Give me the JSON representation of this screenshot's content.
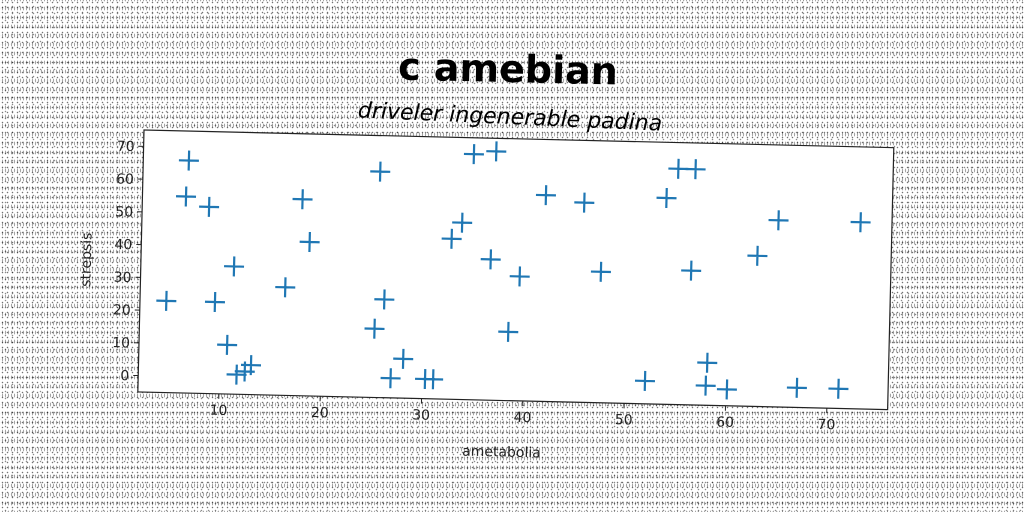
{
  "chart_data": {
    "type": "scatter",
    "title": "c amebian",
    "subtitle": "driveler ingenerable padina",
    "xlabel": "ametabolia",
    "ylabel": "strepsis",
    "xlim": [
      2,
      76
    ],
    "ylim": [
      -5,
      75
    ],
    "xticks": [
      10,
      20,
      30,
      40,
      50,
      60,
      70
    ],
    "yticks": [
      0,
      10,
      20,
      30,
      40,
      50,
      60,
      70
    ],
    "grid": false,
    "marker": "plus",
    "color": "#1f77b4",
    "points": [
      {
        "x": 6.5,
        "y": 66
      },
      {
        "x": 6.3,
        "y": 55
      },
      {
        "x": 8.6,
        "y": 52
      },
      {
        "x": 4.6,
        "y": 23
      },
      {
        "x": 9.4,
        "y": 23
      },
      {
        "x": 11.2,
        "y": 34
      },
      {
        "x": 10.7,
        "y": 10
      },
      {
        "x": 11.7,
        "y": 1
      },
      {
        "x": 12.5,
        "y": 2
      },
      {
        "x": 13.1,
        "y": 4
      },
      {
        "x": 16.3,
        "y": 28
      },
      {
        "x": 17.8,
        "y": 55
      },
      {
        "x": 18.6,
        "y": 42
      },
      {
        "x": 25.4,
        "y": 64
      },
      {
        "x": 25.2,
        "y": 16
      },
      {
        "x": 26.1,
        "y": 25
      },
      {
        "x": 26.9,
        "y": 1
      },
      {
        "x": 28.1,
        "y": 7
      },
      {
        "x": 30.3,
        "y": 1
      },
      {
        "x": 31.1,
        "y": 1
      },
      {
        "x": 32.6,
        "y": 44
      },
      {
        "x": 33.6,
        "y": 49
      },
      {
        "x": 34.6,
        "y": 70
      },
      {
        "x": 36.8,
        "y": 71
      },
      {
        "x": 36.5,
        "y": 38
      },
      {
        "x": 38.4,
        "y": 16
      },
      {
        "x": 39.4,
        "y": 33
      },
      {
        "x": 41.8,
        "y": 58
      },
      {
        "x": 45.6,
        "y": 56
      },
      {
        "x": 47.4,
        "y": 35
      },
      {
        "x": 52.0,
        "y": 2
      },
      {
        "x": 53.7,
        "y": 58
      },
      {
        "x": 54.8,
        "y": 67
      },
      {
        "x": 56.5,
        "y": 67
      },
      {
        "x": 56.3,
        "y": 36
      },
      {
        "x": 58.1,
        "y": 8
      },
      {
        "x": 58.0,
        "y": 1
      },
      {
        "x": 60.1,
        "y": 0
      },
      {
        "x": 62.8,
        "y": 41
      },
      {
        "x": 64.8,
        "y": 52
      },
      {
        "x": 67.0,
        "y": 1
      },
      {
        "x": 71.1,
        "y": 1
      },
      {
        "x": 72.9,
        "y": 52
      }
    ]
  }
}
